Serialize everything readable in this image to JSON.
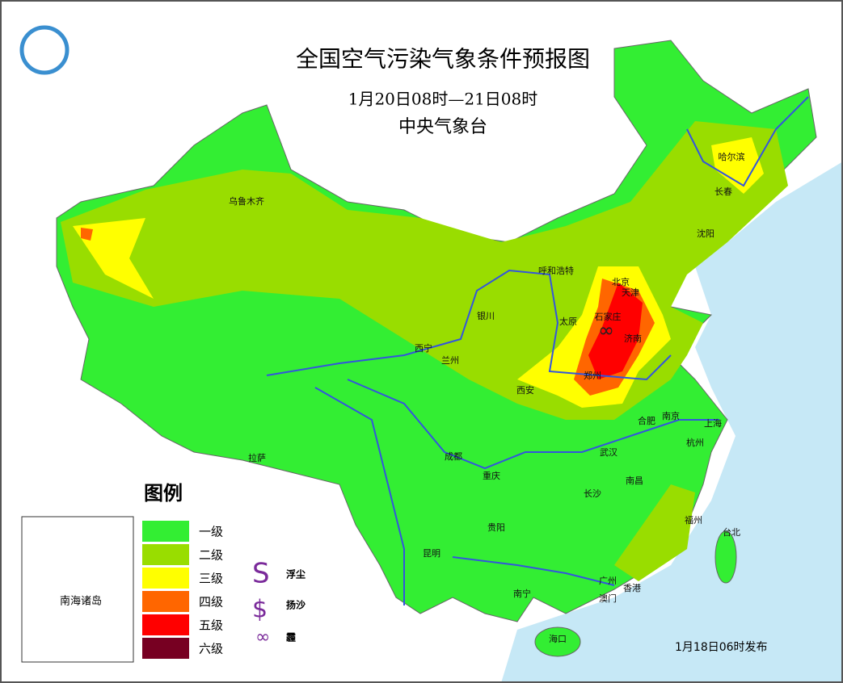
{
  "header": {
    "title": "全国空气污染气象条件预报图",
    "period": "1月20日08时—21日08时",
    "issuer": "中央气象台"
  },
  "legend": {
    "title": "图例",
    "levels": [
      {
        "label": "一级",
        "color": "#33ee33"
      },
      {
        "label": "二级",
        "color": "#99dd00"
      },
      {
        "label": "三级",
        "color": "#ffff00"
      },
      {
        "label": "四级",
        "color": "#ff6600"
      },
      {
        "label": "五级",
        "color": "#ff0000"
      },
      {
        "label": "六级",
        "color": "#770022"
      }
    ],
    "symbols": [
      {
        "label": "浮尘"
      },
      {
        "label": "扬沙"
      },
      {
        "label": "霾"
      }
    ]
  },
  "inset": {
    "label": "南海诸岛"
  },
  "cities": [
    "乌鲁木齐",
    "哈尔滨",
    "长春",
    "沈阳",
    "呼和浩特",
    "北京",
    "天津",
    "石家庄",
    "太原",
    "银川",
    "济南",
    "西宁",
    "兰州",
    "郑州",
    "西安",
    "南京",
    "合肥",
    "上海",
    "杭州",
    "拉萨",
    "成都",
    "武汉",
    "重庆",
    "长沙",
    "南昌",
    "贵阳",
    "福州",
    "台北",
    "昆明",
    "南宁",
    "广州",
    "香港",
    "澳门",
    "海口"
  ],
  "footer": {
    "issued": "1月18日06时发布"
  }
}
